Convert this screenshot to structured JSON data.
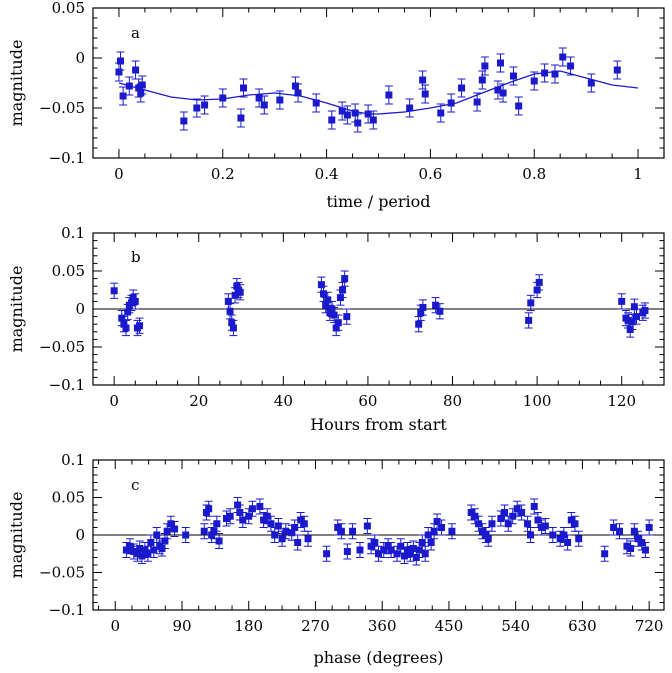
{
  "chart_data": [
    {
      "type": "scatter",
      "panel_label": "a",
      "xlabel": "time / period",
      "ylabel": "magnitude",
      "xlim": [
        -0.05,
        1.05
      ],
      "ylim": [
        -0.1,
        0.05
      ],
      "xticks": [
        0,
        0.2,
        0.4,
        0.6,
        0.8,
        1
      ],
      "xtick_labels": [
        "0",
        "0.2",
        "0.4",
        "0.6",
        "0.8",
        "1"
      ],
      "yticks": [
        0.05,
        0,
        -0.05,
        -0.1
      ],
      "ytick_labels": [
        "0.05",
        "0",
        "−0.05",
        "−0.1"
      ],
      "zero_line": false,
      "error": 0.009,
      "points": [
        [
          0.0,
          -0.014
        ],
        [
          0.003,
          -0.003
        ],
        [
          0.008,
          -0.038
        ],
        [
          0.02,
          -0.028
        ],
        [
          0.032,
          -0.012
        ],
        [
          0.038,
          -0.03
        ],
        [
          0.042,
          -0.035
        ],
        [
          0.045,
          -0.027
        ],
        [
          0.125,
          -0.063
        ],
        [
          0.15,
          -0.05
        ],
        [
          0.165,
          -0.047
        ],
        [
          0.2,
          -0.04
        ],
        [
          0.235,
          -0.06
        ],
        [
          0.24,
          -0.03
        ],
        [
          0.27,
          -0.04
        ],
        [
          0.28,
          -0.047
        ],
        [
          0.31,
          -0.042
        ],
        [
          0.34,
          -0.028
        ],
        [
          0.345,
          -0.035
        ],
        [
          0.38,
          -0.045
        ],
        [
          0.41,
          -0.062
        ],
        [
          0.43,
          -0.053
        ],
        [
          0.44,
          -0.057
        ],
        [
          0.455,
          -0.055
        ],
        [
          0.46,
          -0.065
        ],
        [
          0.48,
          -0.056
        ],
        [
          0.49,
          -0.062
        ],
        [
          0.52,
          -0.037
        ],
        [
          0.56,
          -0.05
        ],
        [
          0.585,
          -0.022
        ],
        [
          0.59,
          -0.036
        ],
        [
          0.62,
          -0.055
        ],
        [
          0.64,
          -0.045
        ],
        [
          0.66,
          -0.03
        ],
        [
          0.69,
          -0.044
        ],
        [
          0.7,
          -0.022
        ],
        [
          0.705,
          -0.008
        ],
        [
          0.73,
          -0.032
        ],
        [
          0.735,
          -0.005
        ],
        [
          0.74,
          -0.035
        ],
        [
          0.76,
          -0.018
        ],
        [
          0.77,
          -0.048
        ],
        [
          0.8,
          -0.023
        ],
        [
          0.82,
          -0.015
        ],
        [
          0.84,
          -0.016
        ],
        [
          0.855,
          0.001
        ],
        [
          0.87,
          -0.008
        ],
        [
          0.91,
          -0.025
        ],
        [
          0.96,
          -0.012
        ]
      ],
      "model_line": [
        [
          0,
          -0.025
        ],
        [
          0.05,
          -0.032
        ],
        [
          0.1,
          -0.039
        ],
        [
          0.15,
          -0.042
        ],
        [
          0.2,
          -0.041
        ],
        [
          0.25,
          -0.037
        ],
        [
          0.3,
          -0.035
        ],
        [
          0.35,
          -0.038
        ],
        [
          0.4,
          -0.045
        ],
        [
          0.45,
          -0.053
        ],
        [
          0.48,
          -0.056
        ],
        [
          0.5,
          -0.056
        ],
        [
          0.55,
          -0.054
        ],
        [
          0.6,
          -0.05
        ],
        [
          0.65,
          -0.045
        ],
        [
          0.7,
          -0.035
        ],
        [
          0.75,
          -0.025
        ],
        [
          0.8,
          -0.016
        ],
        [
          0.85,
          -0.013
        ],
        [
          0.9,
          -0.02
        ],
        [
          0.95,
          -0.027
        ],
        [
          1.0,
          -0.03
        ]
      ]
    },
    {
      "type": "scatter",
      "panel_label": "b",
      "xlabel": "Hours from start",
      "ylabel": "magnitude",
      "xlim": [
        -5,
        130
      ],
      "ylim": [
        -0.1,
        0.1
      ],
      "xticks": [
        0,
        20,
        40,
        60,
        80,
        100,
        120
      ],
      "xtick_labels": [
        "0",
        "20",
        "40",
        "60",
        "80",
        "100",
        "120"
      ],
      "yticks": [
        0.1,
        0.05,
        0,
        -0.05,
        -0.1
      ],
      "ytick_labels": [
        "0.1",
        "0.05",
        "0",
        "−0.05",
        "−0.1"
      ],
      "zero_line": true,
      "error": 0.01,
      "points": [
        [
          0,
          0.024
        ],
        [
          1.8,
          -0.012
        ],
        [
          2.3,
          -0.02
        ],
        [
          2.8,
          -0.025
        ],
        [
          3.2,
          -0.004
        ],
        [
          3.6,
          0.005
        ],
        [
          4.1,
          0.008
        ],
        [
          4.5,
          0.015
        ],
        [
          5,
          0.01
        ],
        [
          5.5,
          -0.025
        ],
        [
          6,
          -0.022
        ],
        [
          27,
          0.01
        ],
        [
          27.4,
          -0.003
        ],
        [
          27.8,
          -0.018
        ],
        [
          28.2,
          -0.025
        ],
        [
          28.6,
          0.018
        ],
        [
          29,
          0.03
        ],
        [
          29.4,
          0.025
        ],
        [
          29.8,
          0.022
        ],
        [
          49,
          0.032
        ],
        [
          49.5,
          0.02
        ],
        [
          50,
          0.005
        ],
        [
          50.5,
          0.012
        ],
        [
          51,
          -0.005
        ],
        [
          51.5,
          0.0
        ],
        [
          52,
          -0.008
        ],
        [
          52.5,
          -0.025
        ],
        [
          53,
          -0.018
        ],
        [
          53.5,
          0.015
        ],
        [
          54,
          0.025
        ],
        [
          54.5,
          0.04
        ],
        [
          55,
          -0.01
        ],
        [
          72,
          -0.02
        ],
        [
          72.5,
          -0.005
        ],
        [
          73,
          0.002
        ],
        [
          76,
          0.005
        ],
        [
          77,
          -0.003
        ],
        [
          98,
          -0.015
        ],
        [
          98.5,
          0.008
        ],
        [
          100,
          0.025
        ],
        [
          100.5,
          0.035
        ],
        [
          120,
          0.01
        ],
        [
          121,
          -0.012
        ],
        [
          121.5,
          -0.015
        ],
        [
          122,
          -0.027
        ],
        [
          122.5,
          -0.017
        ],
        [
          123,
          0.003
        ],
        [
          123.5,
          -0.01
        ],
        [
          125,
          -0.005
        ],
        [
          125.5,
          -0.002
        ]
      ]
    },
    {
      "type": "scatter",
      "panel_label": "c",
      "xlabel": "phase (degrees)",
      "ylabel": "magnitude",
      "xlim": [
        -30,
        740
      ],
      "ylim": [
        -0.1,
        0.1
      ],
      "xticks": [
        0,
        90,
        180,
        270,
        360,
        450,
        540,
        630,
        720
      ],
      "xtick_labels": [
        "0",
        "90",
        "180",
        "270",
        "360",
        "450",
        "540",
        "630",
        "720"
      ],
      "yticks": [
        0.1,
        0.05,
        0,
        -0.05,
        -0.1
      ],
      "ytick_labels": [
        "0.1",
        "0.05",
        "0",
        "−0.05",
        "−0.1"
      ],
      "zero_line": true,
      "error": 0.01,
      "points": [
        [
          15,
          -0.02
        ],
        [
          20,
          -0.015
        ],
        [
          25,
          -0.022
        ],
        [
          30,
          -0.025
        ],
        [
          33,
          -0.018
        ],
        [
          36,
          -0.028
        ],
        [
          40,
          -0.02
        ],
        [
          44,
          -0.025
        ],
        [
          48,
          -0.01
        ],
        [
          52,
          -0.02
        ],
        [
          56,
          0.0
        ],
        [
          60,
          -0.015
        ],
        [
          63,
          -0.018
        ],
        [
          67,
          -0.008
        ],
        [
          70,
          0.005
        ],
        [
          75,
          0.015
        ],
        [
          80,
          0.008
        ],
        [
          95,
          0.0
        ],
        [
          120,
          0.005
        ],
        [
          123,
          0.03
        ],
        [
          126,
          0.035
        ],
        [
          130,
          0.0
        ],
        [
          133,
          0.005
        ],
        [
          137,
          0.015
        ],
        [
          140,
          -0.008
        ],
        [
          150,
          0.022
        ],
        [
          155,
          0.025
        ],
        [
          165,
          0.04
        ],
        [
          168,
          0.03
        ],
        [
          172,
          0.02
        ],
        [
          180,
          0.025
        ],
        [
          185,
          0.035
        ],
        [
          195,
          0.038
        ],
        [
          200,
          0.02
        ],
        [
          205,
          0.025
        ],
        [
          210,
          0.015
        ],
        [
          215,
          0.0
        ],
        [
          220,
          0.012
        ],
        [
          225,
          -0.005
        ],
        [
          230,
          0.005
        ],
        [
          238,
          0.003
        ],
        [
          242,
          0.01
        ],
        [
          246,
          -0.01
        ],
        [
          250,
          0.02
        ],
        [
          255,
          0.015
        ],
        [
          260,
          -0.005
        ],
        [
          285,
          -0.025
        ],
        [
          300,
          0.01
        ],
        [
          305,
          0.005
        ],
        [
          313,
          -0.022
        ],
        [
          320,
          0.005
        ],
        [
          330,
          -0.02
        ],
        [
          340,
          0.012
        ],
        [
          345,
          -0.015
        ],
        [
          350,
          -0.01
        ],
        [
          355,
          -0.025
        ],
        [
          362,
          -0.02
        ],
        [
          368,
          -0.015
        ],
        [
          372,
          -0.02
        ],
        [
          380,
          -0.025
        ],
        [
          385,
          -0.015
        ],
        [
          390,
          -0.028
        ],
        [
          394,
          -0.02
        ],
        [
          398,
          -0.025
        ],
        [
          402,
          -0.018
        ],
        [
          406,
          -0.03
        ],
        [
          410,
          -0.02
        ],
        [
          414,
          -0.01
        ],
        [
          418,
          -0.025
        ],
        [
          422,
          0.0
        ],
        [
          426,
          -0.01
        ],
        [
          430,
          0.005
        ],
        [
          434,
          0.018
        ],
        [
          440,
          0.01
        ],
        [
          454,
          0.005
        ],
        [
          480,
          0.03
        ],
        [
          485,
          0.025
        ],
        [
          490,
          0.015
        ],
        [
          495,
          0.005
        ],
        [
          500,
          0.0
        ],
        [
          503,
          -0.005
        ],
        [
          508,
          0.015
        ],
        [
          520,
          0.022
        ],
        [
          525,
          0.03
        ],
        [
          530,
          0.015
        ],
        [
          536,
          0.025
        ],
        [
          542,
          0.035
        ],
        [
          548,
          0.03
        ],
        [
          556,
          0.015
        ],
        [
          560,
          0.0
        ],
        [
          565,
          0.038
        ],
        [
          570,
          0.02
        ],
        [
          575,
          0.01
        ],
        [
          580,
          0.012
        ],
        [
          590,
          0.0
        ],
        [
          600,
          -0.005
        ],
        [
          605,
          0.0
        ],
        [
          610,
          -0.01
        ],
        [
          615,
          0.02
        ],
        [
          620,
          0.015
        ],
        [
          625,
          -0.005
        ],
        [
          660,
          -0.025
        ],
        [
          672,
          0.01
        ],
        [
          680,
          0.005
        ],
        [
          690,
          -0.015
        ],
        [
          695,
          -0.018
        ],
        [
          700,
          0.005
        ],
        [
          705,
          -0.005
        ],
        [
          710,
          -0.01
        ],
        [
          715,
          -0.02
        ],
        [
          720,
          0.01
        ]
      ]
    }
  ]
}
